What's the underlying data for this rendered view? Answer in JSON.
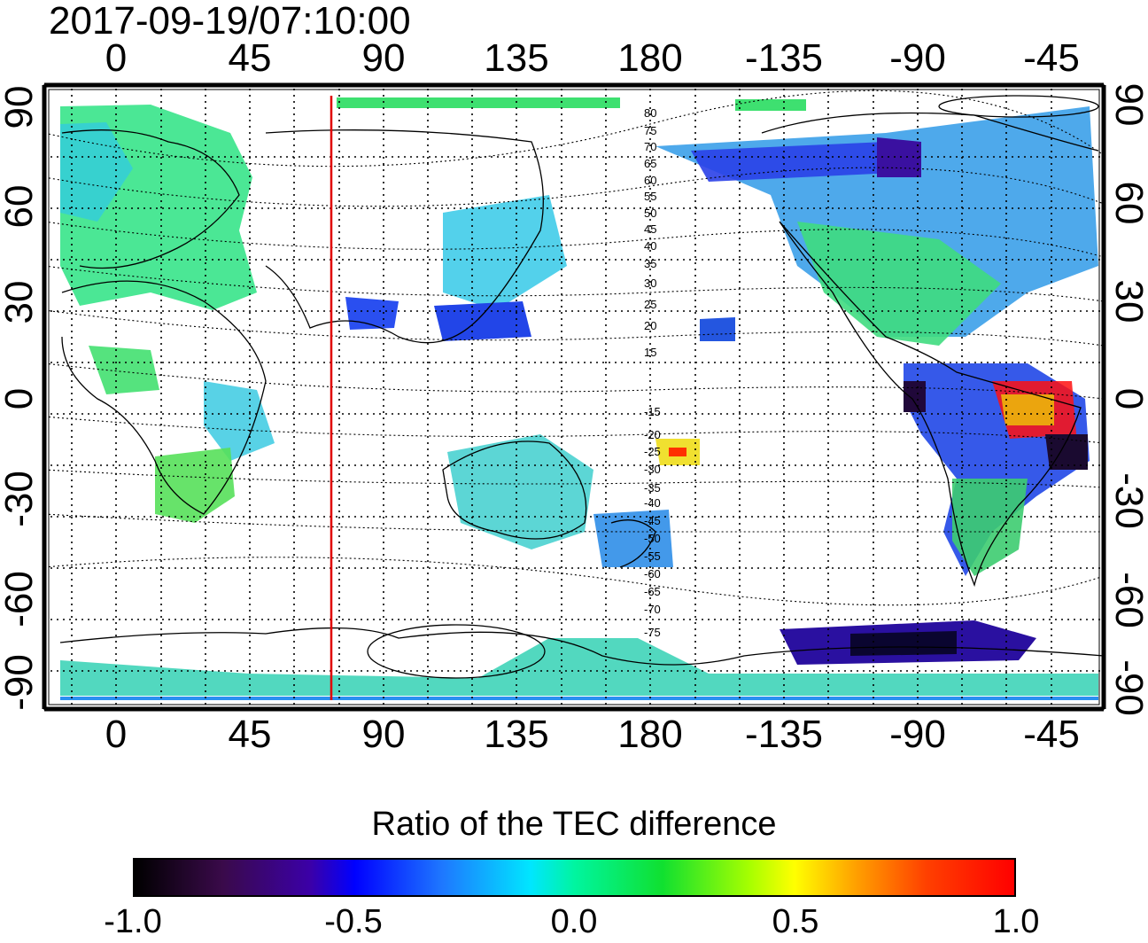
{
  "timestamp": "2017-09-19/07:10:00",
  "lon_ticks": [
    "0",
    "45",
    "90",
    "135",
    "180",
    "-135",
    "-90",
    "-45"
  ],
  "lat_ticks_left": [
    "90",
    "60",
    "30",
    "0",
    "-30",
    "-60",
    "-90"
  ],
  "lat_ticks_right": [
    "90",
    "60",
    "30",
    "0",
    "-30",
    "-60",
    "-90"
  ],
  "magnetic_lat_labels": [
    "80",
    "75",
    "70",
    "65",
    "60",
    "55",
    "50",
    "45",
    "40",
    "35",
    "30",
    "25",
    "20",
    "15",
    "-15",
    "-20",
    "-25",
    "-30",
    "-35",
    "-40",
    "-45",
    "-50",
    "-55",
    "-60",
    "-65",
    "-70",
    "-75"
  ],
  "colorbar": {
    "title": "Ratio of the TEC difference",
    "tick_labels": [
      "-1.0",
      "-0.5",
      "0.0",
      "0.5",
      "1.0"
    ],
    "range": [
      -1.0,
      1.0
    ],
    "colors": [
      "#000000",
      "#3b00a8",
      "#0000ff",
      "#00e6ff",
      "#10e030",
      "#ffff00",
      "#ff0000"
    ]
  },
  "map": {
    "projection": "equirectangular",
    "lon_range": [
      -20,
      340
    ],
    "lat_range": [
      -90,
      90
    ],
    "marker_line_lon": 75,
    "marker_line_color": "#e00000",
    "grid": "dotted every 15 degrees"
  }
}
